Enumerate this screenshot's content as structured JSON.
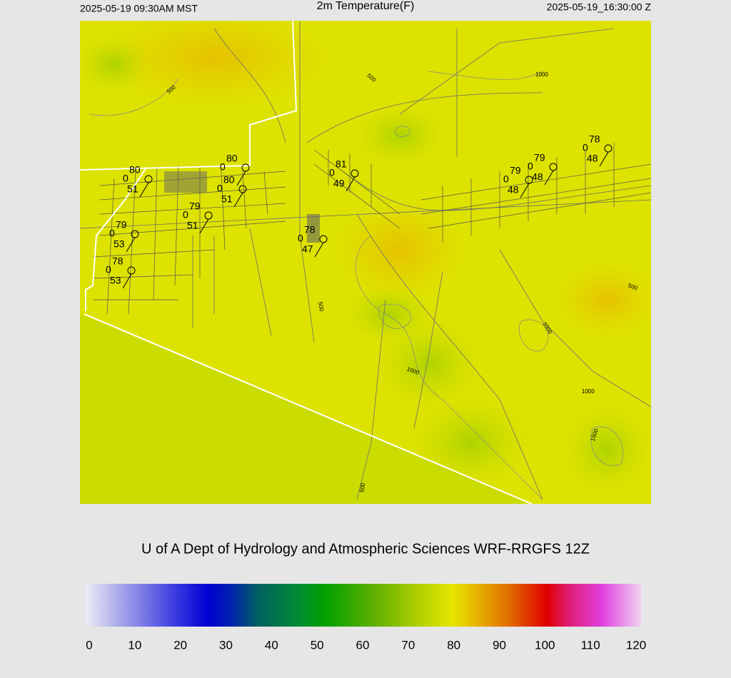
{
  "header": {
    "local_time": "2025-05-19 09:30AM MST",
    "title": "2m Temperature(F)",
    "utc_time": "2025-05-19_16:30:00 Z"
  },
  "map": {
    "stations": [
      {
        "temperature": 80,
        "wind": 0,
        "dewpoint": 51
      },
      {
        "temperature": 79,
        "wind": 0,
        "dewpoint": 53
      },
      {
        "temperature": 78,
        "wind": 0,
        "dewpoint": 53
      },
      {
        "temperature": 79,
        "wind": 0,
        "dewpoint": 51
      },
      {
        "temperature": 80,
        "wind": 0
      },
      {
        "temperature": 80,
        "wind": 0,
        "dewpoint": 51
      },
      {
        "temperature": 81,
        "wind": 0,
        "dewpoint": 49
      },
      {
        "temperature": 78,
        "wind": 0,
        "dewpoint": 47
      },
      {
        "temperature": 79,
        "wind": 0,
        "dewpoint": 48
      },
      {
        "temperature": 79,
        "wind": 0,
        "dewpoint": 48
      },
      {
        "temperature": 78,
        "wind": 0,
        "dewpoint": 48
      }
    ],
    "contour_labels": [
      "500",
      "500",
      "1000",
      "500",
      "500",
      "1000",
      "1000",
      "1000",
      "1500",
      "500"
    ]
  },
  "credit": "U of A Dept of Hydrology and Atmospheric Sciences WRF-RRGFS 12Z",
  "colorbar": {
    "ticks": [
      0,
      10,
      20,
      30,
      40,
      50,
      60,
      70,
      80,
      90,
      100,
      110,
      120
    ],
    "range": [
      0,
      120
    ]
  }
}
